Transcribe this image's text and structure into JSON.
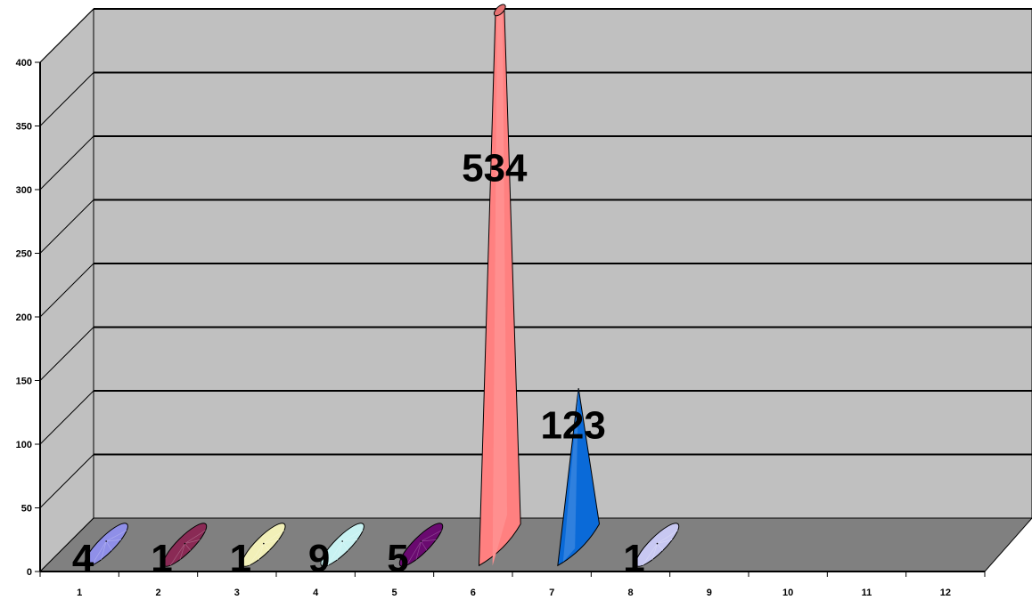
{
  "chart_data": {
    "type": "bar",
    "style": "3d-cone",
    "categories": [
      "1",
      "2",
      "3",
      "4",
      "5",
      "6",
      "7",
      "8",
      "9",
      "10",
      "11",
      "12"
    ],
    "values": [
      4,
      1,
      1,
      9,
      5,
      534,
      123,
      1,
      null,
      null,
      null,
      null
    ],
    "data_labels": [
      "4",
      "1",
      "1",
      "9",
      "5",
      "534",
      "123",
      "1",
      "",
      "",
      "",
      ""
    ],
    "colors": [
      "#8f8fe8",
      "#8a2a55",
      "#f2f0b8",
      "#c8f2f2",
      "#6a0a70",
      "#ff8080",
      "#0a6ad8",
      "#c8c8f2",
      "",
      "",
      "",
      ""
    ],
    "yticks": [
      0,
      50,
      100,
      150,
      200,
      250,
      300,
      350,
      400
    ],
    "ylim": [
      0,
      400
    ],
    "grid": true,
    "legend": "none",
    "wall_color": "#c0c0c0",
    "floor_color": "#808080"
  }
}
